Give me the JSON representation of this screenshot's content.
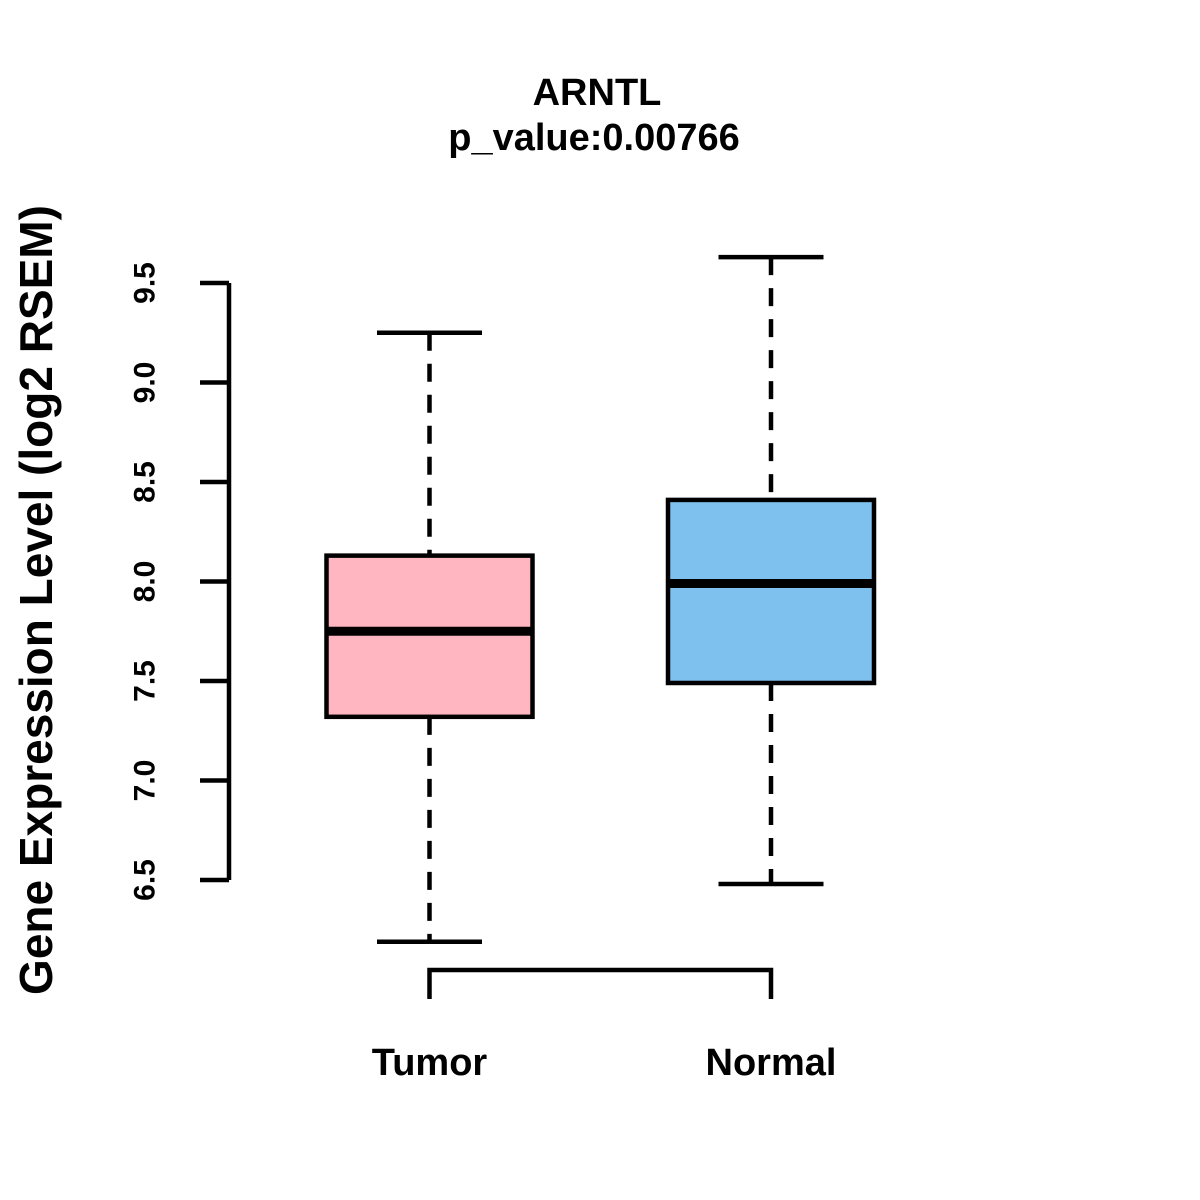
{
  "chart_data": {
    "type": "boxplot",
    "title": "ARNTL",
    "subtitle": "p_value:0.00766",
    "ylabel": "Gene Expression Level (log2 RSEM)",
    "xlabel": "",
    "categories": [
      "Tumor",
      "Normal"
    ],
    "series": [
      {
        "name": "Tumor",
        "color": "#FFB6C1",
        "whisker_low": 6.19,
        "q1": 7.32,
        "median": 7.75,
        "q3": 8.13,
        "whisker_high": 9.25
      },
      {
        "name": "Normal",
        "color": "#7EC0EE",
        "whisker_low": 6.48,
        "q1": 7.49,
        "median": 7.99,
        "q3": 8.41,
        "whisker_high": 9.63
      }
    ],
    "yticks": [
      6.5,
      7.0,
      7.5,
      8.0,
      8.5,
      9.0,
      9.5
    ],
    "ytick_labels": [
      "6.5",
      "7.0",
      "7.5",
      "8.0",
      "8.5",
      "9.0",
      "9.5"
    ],
    "ylim": [
      6.5,
      9.5
    ],
    "grid": false,
    "legend": "none",
    "line_color": "#000000",
    "background_color": "#FFFFFF"
  }
}
